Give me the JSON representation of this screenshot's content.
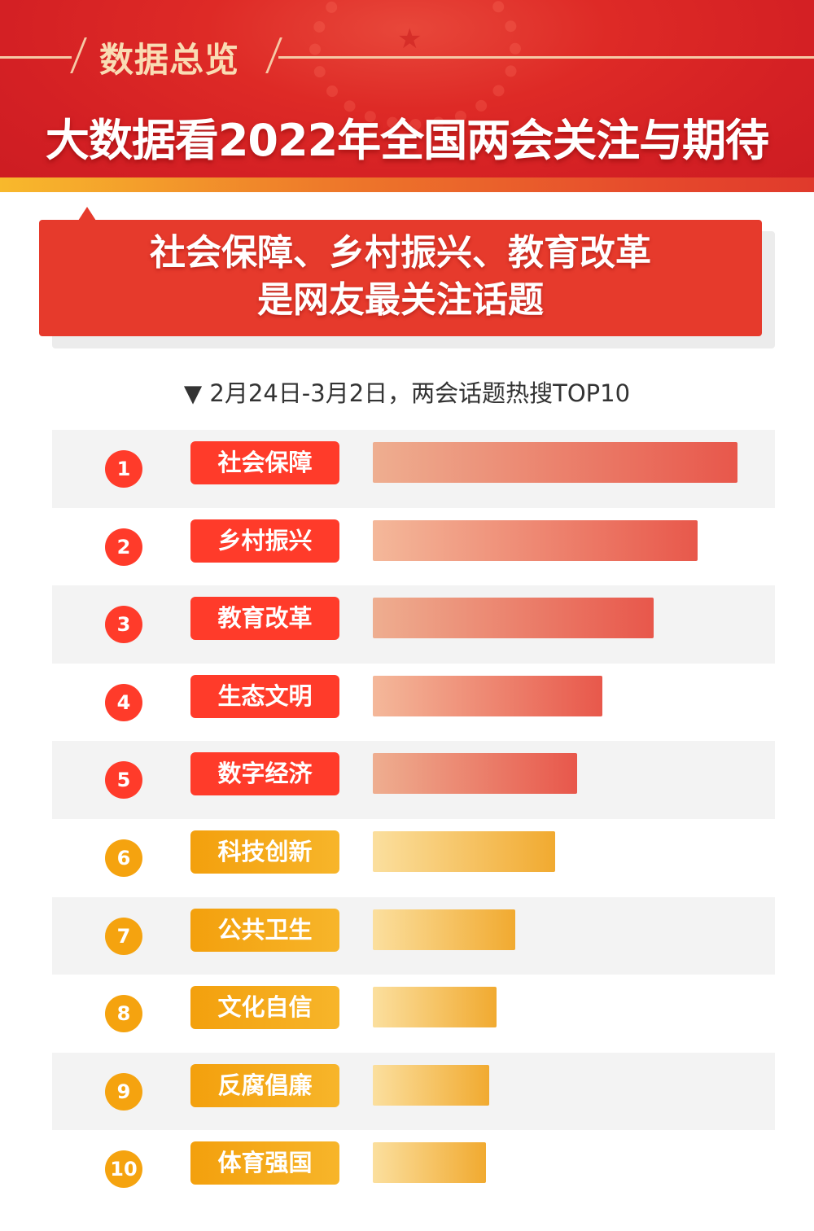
{
  "header": {
    "kicker": "数据总览",
    "title": "大数据看2022年全国两会关注与期待"
  },
  "callout": {
    "line1": "社会保障、乡村振兴、教育改革",
    "line2": "是网友最关注话题"
  },
  "colors": {
    "header_red": "#d42024",
    "callout_red": "#e63a2c",
    "top_red": "#ff3b2a",
    "orange": "#f5a30f"
  },
  "chart_data": {
    "type": "bar",
    "orientation": "horizontal",
    "title": "▼ 2月24日-3月2日，两会话题热搜TOP10",
    "ranks": [
      "1",
      "2",
      "3",
      "4",
      "5",
      "6",
      "7",
      "8",
      "9",
      "10"
    ],
    "categories": [
      "社会保障",
      "乡村振兴",
      "教育改革",
      "生态文明",
      "数字经济",
      "科技创新",
      "公共卫生",
      "文化自信",
      "反腐倡廉",
      "体育强国"
    ],
    "values": [
      100,
      89,
      77,
      63,
      56,
      50,
      39,
      34,
      32,
      31
    ],
    "value_note": "relative bar length, no values printed",
    "grid": false
  }
}
